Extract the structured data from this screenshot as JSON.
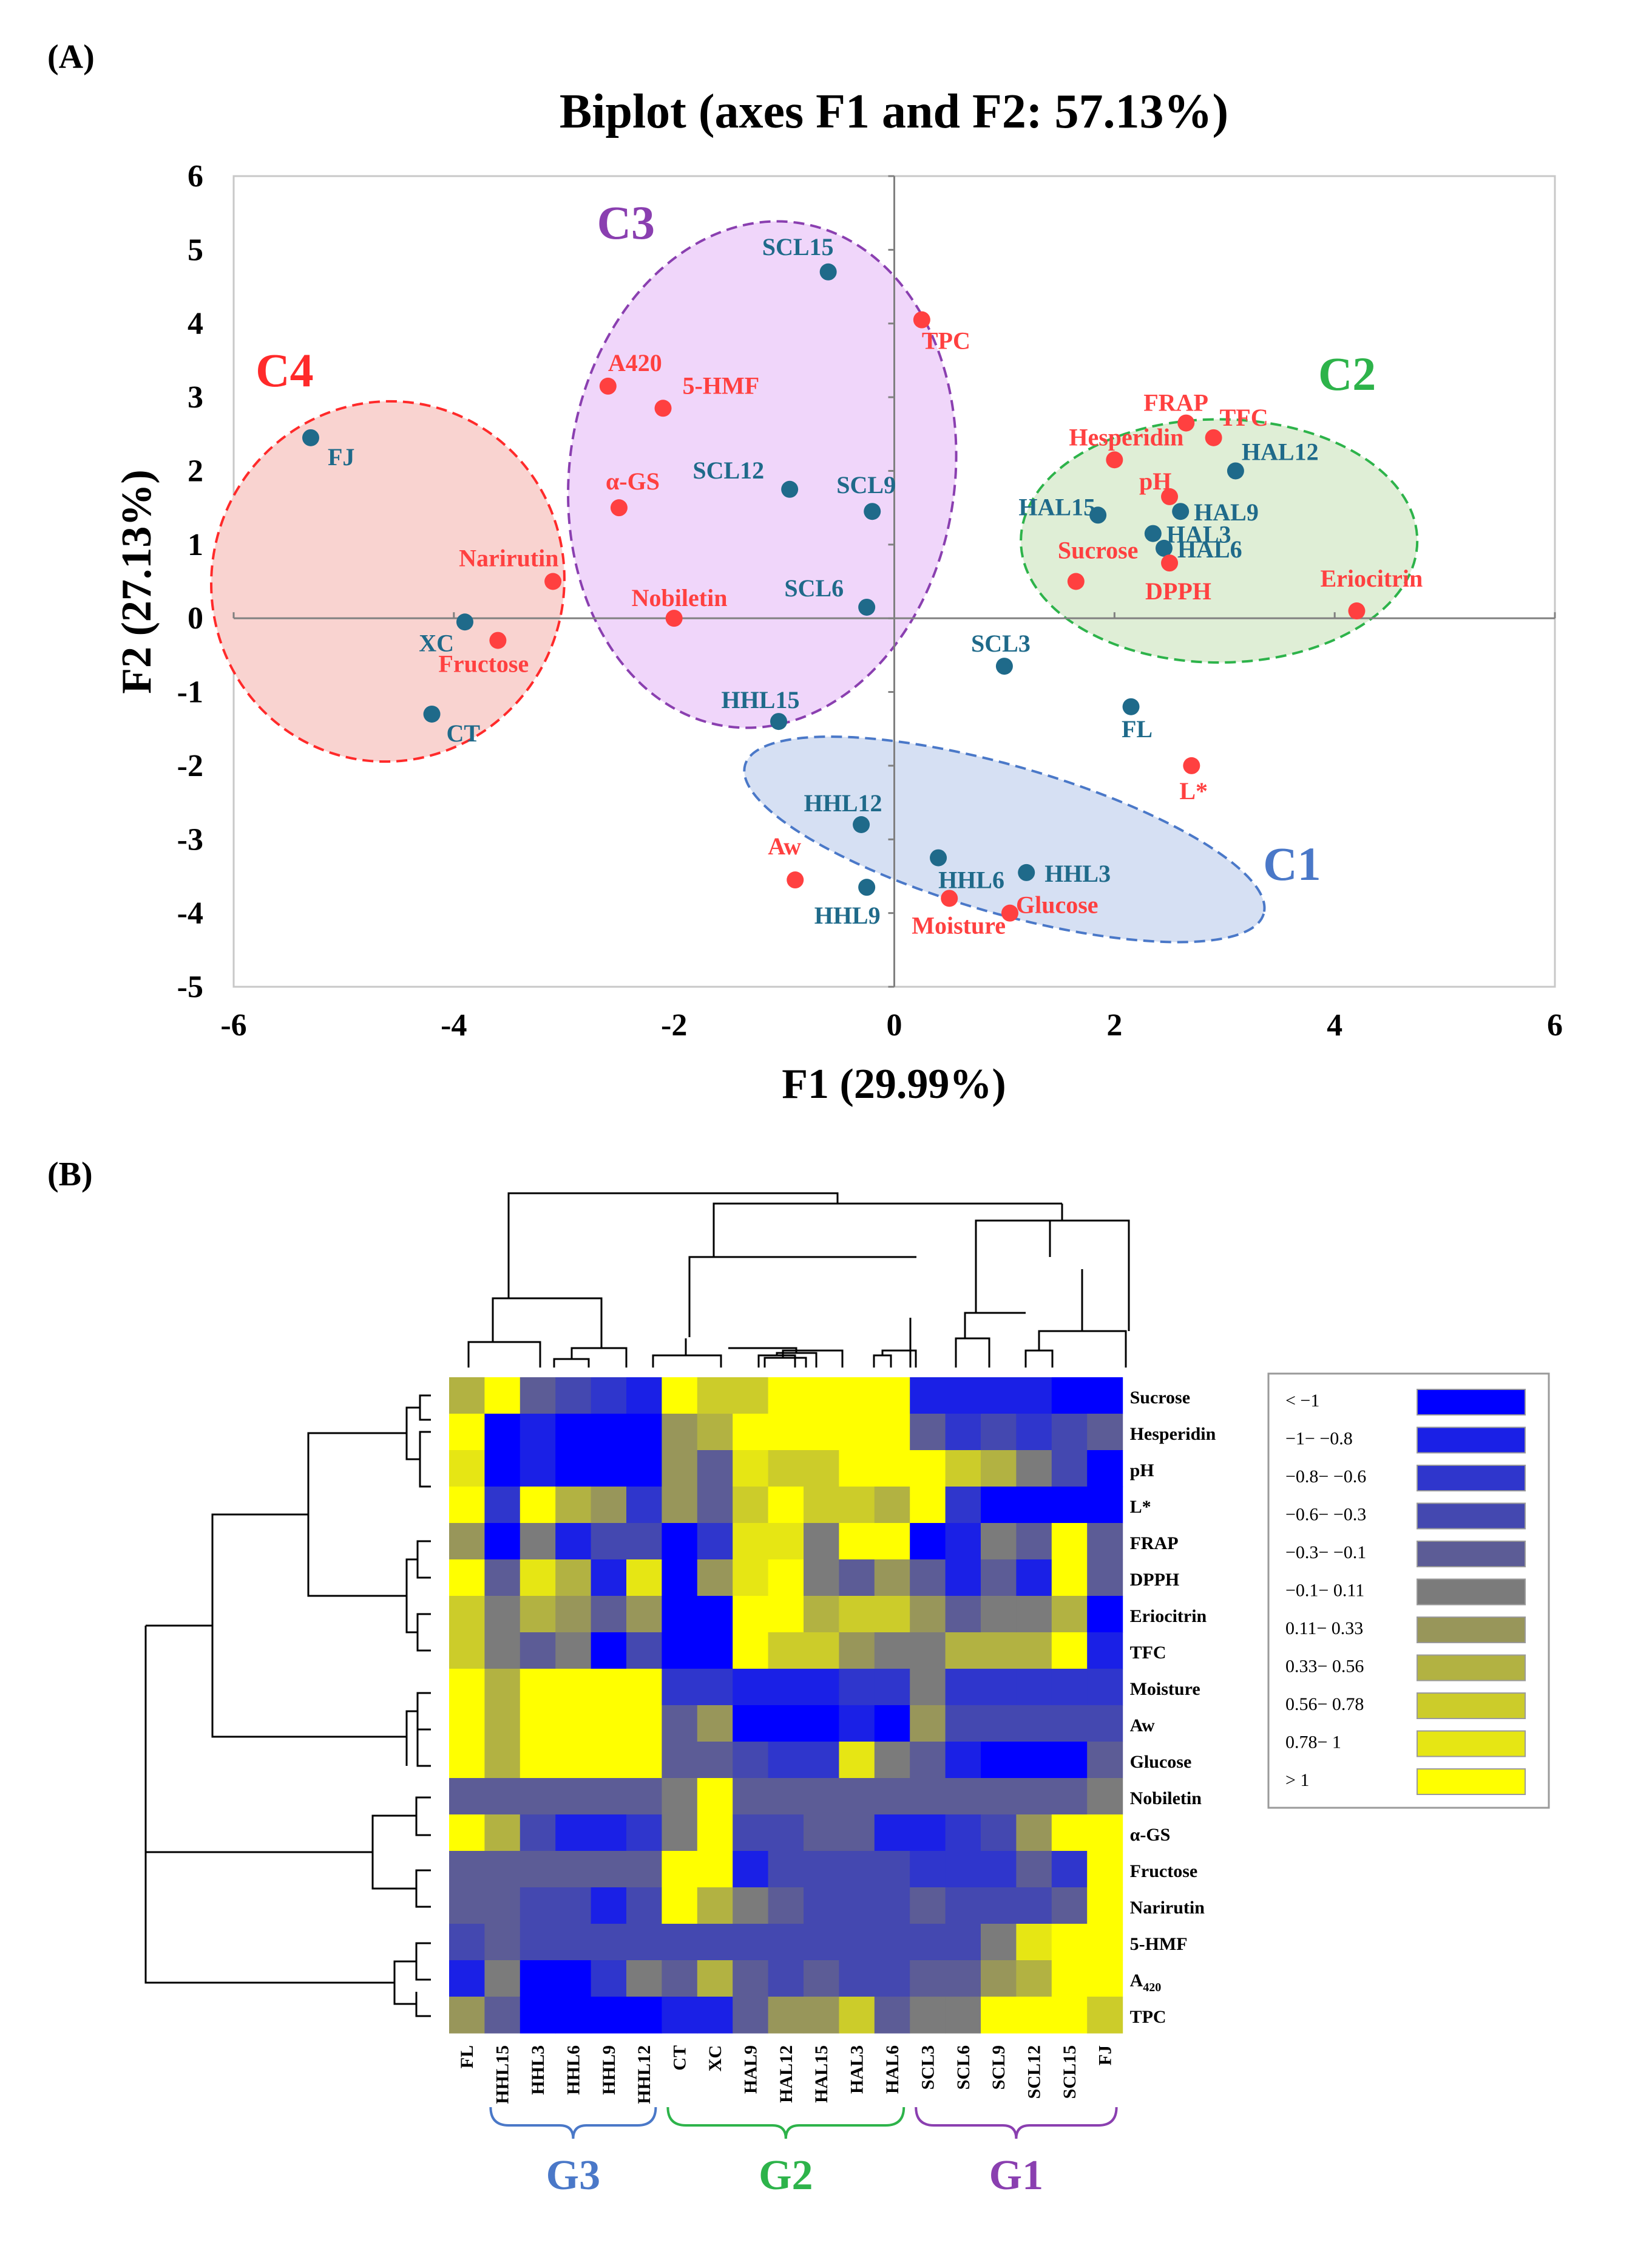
{
  "panel_a_label": "(A)",
  "panel_b_label": "(B)",
  "colors": {
    "obs": "#1f6a8a",
    "var": "#ff4040",
    "c1": "#4a78c8",
    "c1_fill": "#d6e0f3",
    "c2": "#2db34a",
    "c2_fill": "#dfeed6",
    "c3": "#8a3fb0",
    "c3_fill": "#f0d6fa",
    "c4": "#ff2a2a",
    "c4_fill": "#f9d3d0",
    "g3": "#4a78c8",
    "g2": "#2db34a",
    "g1": "#8a3fb0"
  },
  "chart_data": [
    {
      "type": "scatter",
      "title": "Biplot (axes F1 and F2: 57.13%)",
      "xlabel": "F1 (29.99%)",
      "ylabel": "F2 (27.13%)",
      "xlim": [
        -6,
        6
      ],
      "ylim": [
        -5,
        6
      ],
      "xticks": [
        -6,
        -4,
        -2,
        0,
        2,
        4,
        6
      ],
      "yticks": [
        -5,
        -4,
        -3,
        -2,
        -1,
        0,
        1,
        2,
        3,
        4,
        5,
        6
      ],
      "series": [
        {
          "name": "observations",
          "points": [
            {
              "label": "FJ",
              "x": -5.3,
              "y": 2.45
            },
            {
              "label": "XC",
              "x": -3.9,
              "y": -0.05
            },
            {
              "label": "CT",
              "x": -4.2,
              "y": -1.3
            },
            {
              "label": "SCL15",
              "x": -0.6,
              "y": 4.7
            },
            {
              "label": "SCL12",
              "x": -0.95,
              "y": 1.75
            },
            {
              "label": "SCL9",
              "x": -0.2,
              "y": 1.45
            },
            {
              "label": "SCL6",
              "x": -0.25,
              "y": 0.15
            },
            {
              "label": "SCL3",
              "x": 1.0,
              "y": -0.65
            },
            {
              "label": "HHL15",
              "x": -1.05,
              "y": -1.4
            },
            {
              "label": "HHL12",
              "x": -0.3,
              "y": -2.8
            },
            {
              "label": "HHL9",
              "x": -0.25,
              "y": -3.65
            },
            {
              "label": "HHL6",
              "x": 0.4,
              "y": -3.25
            },
            {
              "label": "HHL3",
              "x": 1.2,
              "y": -3.45
            },
            {
              "label": "FL",
              "x": 2.15,
              "y": -1.2
            },
            {
              "label": "HAL15",
              "x": 1.85,
              "y": 1.4
            },
            {
              "label": "HAL12",
              "x": 3.1,
              "y": 2.0
            },
            {
              "label": "HAL9",
              "x": 2.6,
              "y": 1.45
            },
            {
              "label": "HAL3",
              "x": 2.35,
              "y": 1.15
            },
            {
              "label": "HAL6",
              "x": 2.45,
              "y": 0.95
            }
          ]
        },
        {
          "name": "variables",
          "points": [
            {
              "label": "TPC",
              "x": 0.25,
              "y": 4.05
            },
            {
              "label": "A420",
              "x": -2.6,
              "y": 3.15
            },
            {
              "label": "5-HMF",
              "x": -2.1,
              "y": 2.85
            },
            {
              "label": "α-GS",
              "x": -2.5,
              "y": 1.5
            },
            {
              "label": "Narirutin",
              "x": -3.1,
              "y": 0.5
            },
            {
              "label": "Nobiletin",
              "x": -2.0,
              "y": 0.0
            },
            {
              "label": "Fructose",
              "x": -3.6,
              "y": -0.3
            },
            {
              "label": "FRAP",
              "x": 2.65,
              "y": 2.65
            },
            {
              "label": "TFC",
              "x": 2.9,
              "y": 2.45
            },
            {
              "label": "Hesperidin",
              "x": 2.0,
              "y": 2.15
            },
            {
              "label": "pH",
              "x": 2.5,
              "y": 1.65
            },
            {
              "label": "Sucrose",
              "x": 1.65,
              "y": 0.5
            },
            {
              "label": "DPPH",
              "x": 2.5,
              "y": 0.75
            },
            {
              "label": "Eriocitrin",
              "x": 4.2,
              "y": 0.1
            },
            {
              "label": "L*",
              "x": 2.7,
              "y": -2.0
            },
            {
              "label": "Aw",
              "x": -0.9,
              "y": -3.55
            },
            {
              "label": "Moisture",
              "x": 0.5,
              "y": -3.8
            },
            {
              "label": "Glucose",
              "x": 1.05,
              "y": -4.0
            }
          ]
        }
      ],
      "clusters": [
        {
          "label": "C1"
        },
        {
          "label": "C2"
        },
        {
          "label": "C3"
        },
        {
          "label": "C4"
        }
      ]
    },
    {
      "type": "heatmap",
      "columns": [
        "FL",
        "HHL15",
        "HHL3",
        "HHL6",
        "HHL9",
        "HHL12",
        "CT",
        "XC",
        "HAL9",
        "HAL12",
        "HAL15",
        "HAL3",
        "HAL6",
        "SCL3",
        "SCL6",
        "SCL9",
        "SCL12",
        "SCL15",
        "FJ"
      ],
      "rows": [
        "Sucrose",
        "Hesperidin",
        "pH",
        "L*",
        "FRAP",
        "DPPH",
        "Eriocitrin",
        "TFC",
        "Moisture",
        "Aw",
        "Glucose",
        "Nobiletin",
        "α-GS",
        "Fructose",
        "Narirutin",
        "5-HMF",
        "A420",
        "TPC"
      ],
      "row_labels_display": [
        {
          "main": "Sucrose"
        },
        {
          "main": "Hesperidin"
        },
        {
          "main": "pH"
        },
        {
          "main": "L*"
        },
        {
          "main": "FRAP"
        },
        {
          "main": "DPPH"
        },
        {
          "main": "Eriocitrin"
        },
        {
          "main": "TFC"
        },
        {
          "main": "Moisture"
        },
        {
          "main": "Aw"
        },
        {
          "main": "Glucose"
        },
        {
          "main": "Nobiletin"
        },
        {
          "main": "α-GS"
        },
        {
          "main": "Fructose"
        },
        {
          "main": "Narirutin"
        },
        {
          "main": "5-HMF"
        },
        {
          "main": "A",
          "sub": "420"
        },
        {
          "main": "TPC"
        }
      ],
      "matrix": [
        [
          7,
          10,
          4,
          3,
          2,
          1,
          10,
          8,
          8,
          10,
          10,
          10,
          10,
          1,
          1,
          1,
          1,
          0,
          0
        ],
        [
          10,
          0,
          1,
          0,
          0,
          0,
          6,
          7,
          10,
          10,
          10,
          10,
          10,
          4,
          2,
          3,
          2,
          3,
          4
        ],
        [
          9,
          0,
          1,
          0,
          0,
          0,
          6,
          4,
          9,
          8,
          8,
          10,
          10,
          10,
          8,
          7,
          5,
          3,
          0
        ],
        [
          10,
          2,
          10,
          7,
          6,
          2,
          6,
          4,
          8,
          10,
          8,
          8,
          7,
          10,
          2,
          0,
          0,
          0,
          0
        ],
        [
          6,
          0,
          5,
          1,
          3,
          3,
          0,
          2,
          9,
          9,
          5,
          10,
          10,
          0,
          1,
          5,
          4,
          10,
          4
        ],
        [
          10,
          4,
          9,
          7,
          1,
          9,
          0,
          6,
          9,
          10,
          5,
          4,
          6,
          4,
          1,
          4,
          1,
          10,
          4
        ],
        [
          8,
          5,
          7,
          6,
          4,
          6,
          0,
          0,
          10,
          10,
          7,
          8,
          8,
          6,
          4,
          5,
          5,
          7,
          0
        ],
        [
          8,
          5,
          4,
          5,
          0,
          3,
          0,
          0,
          10,
          8,
          8,
          6,
          5,
          5,
          7,
          7,
          7,
          10,
          1
        ],
        [
          10,
          7,
          10,
          10,
          10,
          10,
          2,
          2,
          1,
          1,
          1,
          2,
          2,
          5,
          2,
          2,
          2,
          2,
          2
        ],
        [
          10,
          7,
          10,
          10,
          10,
          10,
          4,
          6,
          0,
          0,
          0,
          1,
          0,
          6,
          3,
          3,
          3,
          3,
          3
        ],
        [
          10,
          7,
          10,
          10,
          10,
          10,
          4,
          4,
          3,
          2,
          2,
          9,
          5,
          4,
          1,
          0,
          0,
          0,
          4
        ],
        [
          4,
          4,
          4,
          4,
          4,
          4,
          5,
          10,
          4,
          4,
          4,
          4,
          4,
          4,
          4,
          4,
          4,
          4,
          5
        ],
        [
          10,
          7,
          3,
          1,
          1,
          2,
          5,
          10,
          3,
          3,
          4,
          4,
          1,
          1,
          2,
          3,
          6,
          10,
          10
        ],
        [
          4,
          4,
          4,
          4,
          4,
          4,
          10,
          10,
          1,
          3,
          3,
          3,
          3,
          2,
          2,
          2,
          4,
          2,
          10
        ],
        [
          4,
          4,
          3,
          3,
          1,
          3,
          10,
          7,
          5,
          4,
          3,
          3,
          3,
          4,
          3,
          3,
          3,
          4,
          10
        ],
        [
          3,
          4,
          3,
          3,
          3,
          3,
          3,
          3,
          3,
          3,
          3,
          3,
          3,
          3,
          3,
          5,
          9,
          10,
          10
        ],
        [
          1,
          5,
          0,
          0,
          2,
          5,
          4,
          7,
          4,
          3,
          4,
          3,
          3,
          4,
          4,
          6,
          7,
          10,
          10
        ],
        [
          6,
          4,
          0,
          0,
          0,
          0,
          1,
          1,
          4,
          6,
          6,
          8,
          4,
          5,
          5,
          10,
          10,
          10,
          8
        ]
      ],
      "legend": [
        {
          "label": "< −1",
          "color": "#0000ff"
        },
        {
          "label": "−1− −0.8",
          "color": "#1a20e6"
        },
        {
          "label": "−0.8− −0.6",
          "color": "#2f36cc"
        },
        {
          "label": "−0.6− −0.3",
          "color": "#4448b0"
        },
        {
          "label": "−0.3− −0.1",
          "color": "#5c5c96"
        },
        {
          "label": "−0.1− 0.11",
          "color": "#7b7b7b"
        },
        {
          "label": "0.11− 0.33",
          "color": "#98965a"
        },
        {
          "label": "0.33− 0.56",
          "color": "#b2b242"
        },
        {
          "label": "0.56− 0.78",
          "color": "#cccc2a"
        },
        {
          "label": "0.78− 1",
          "color": "#e6e614"
        },
        {
          "label": "> 1",
          "color": "#ffff00"
        }
      ],
      "groups": [
        {
          "label": "G3",
          "from": "HHL15",
          "to": "HHL12"
        },
        {
          "label": "G2",
          "from": "CT",
          "to": "HAL6"
        },
        {
          "label": "G1",
          "from": "SCL3",
          "to": "FJ"
        }
      ]
    }
  ]
}
